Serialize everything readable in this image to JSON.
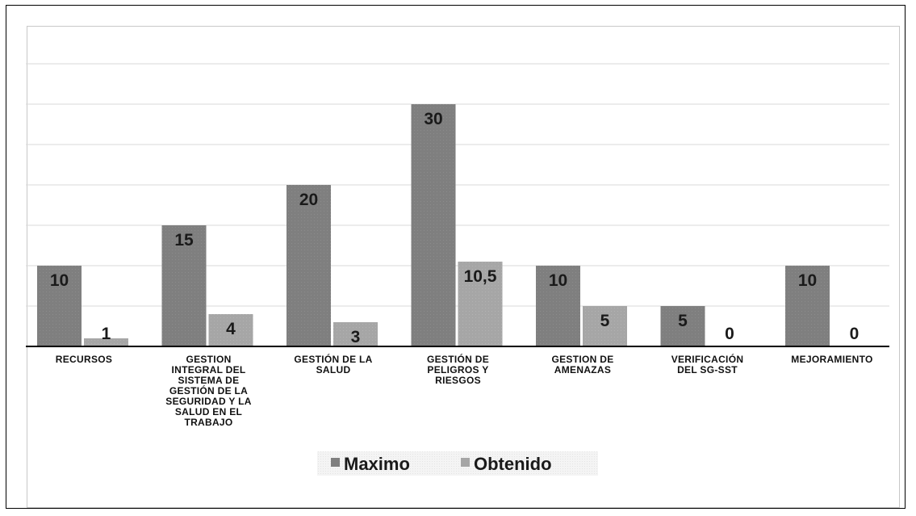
{
  "chart_data": {
    "type": "bar",
    "categories": [
      [
        "RECURSOS"
      ],
      [
        "GESTION",
        "INTEGRAL DEL",
        "SISTEMA DE",
        "GESTIÓN DE LA",
        "SEGURIDAD Y LA",
        "SALUD EN EL",
        "TRABAJO"
      ],
      [
        "GESTIÓN DE LA",
        "SALUD"
      ],
      [
        "GESTIÓN DE",
        "PELIGROS Y",
        "RIESGOS"
      ],
      [
        "GESTION DE",
        "AMENAZAS"
      ],
      [
        "VERIFICACIÓN",
        "DEL SG-SST"
      ],
      [
        "MEJORAMIENTO"
      ]
    ],
    "series": [
      {
        "name": "Maximo",
        "values": [
          10,
          15,
          20,
          30,
          10,
          5,
          10
        ],
        "labels": [
          "10",
          "15",
          "20",
          "30",
          "10",
          "5",
          "10"
        ],
        "color": "#7f7f7f"
      },
      {
        "name": "Obtenido",
        "values": [
          1,
          4,
          3,
          10.5,
          5,
          0,
          0
        ],
        "labels": [
          "1",
          "4",
          "3",
          "10,5",
          "5",
          "0",
          "0"
        ],
        "color": "#a6a6a6"
      }
    ],
    "ylim": [
      0,
      35
    ],
    "grid": true,
    "legend": "bottom",
    "title": "",
    "xlabel": "",
    "ylabel": ""
  }
}
